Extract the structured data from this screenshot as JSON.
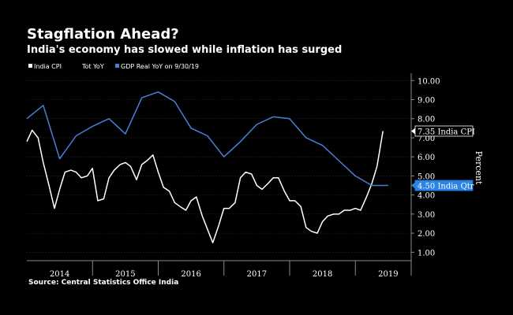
{
  "header": {
    "title": "Stagflation Ahead?",
    "subtitle": "India's economy has slowed while inflation has surged"
  },
  "source": "Source: Central Statistics Office India",
  "colors": {
    "background": "#000000",
    "cpi_line": "#ffffff",
    "gdp_line": "#4a7fd6",
    "gdp_label_bg": "#2b83e6",
    "axis": "#8a8a8a",
    "grid": "#3a3a3a"
  },
  "chart_data": {
    "type": "line",
    "title": "Stagflation Ahead?",
    "xlabel": "",
    "ylabel": "Percent",
    "ylim": [
      0.6,
      10.3
    ],
    "yticks": [
      "10.00",
      "9.00",
      "8.00",
      "7.00",
      "6.00",
      "5.00",
      "4.00",
      "3.00",
      "2.00",
      "1.00"
    ],
    "ytick_values": [
      10,
      9,
      8,
      7,
      6,
      5,
      4,
      3,
      2,
      1
    ],
    "x_start": 2014.0,
    "x_end": 2019.85,
    "year_labels": [
      "2014",
      "2015",
      "2016",
      "2017",
      "2018",
      "2019"
    ],
    "year_label_values": [
      2014.5,
      2015.5,
      2016.5,
      2017.5,
      2018.5,
      2019.5
    ],
    "legend": [
      {
        "label": "India CPI",
        "color": "#ffffff"
      },
      {
        "label": "Tot YoY",
        "color": ""
      },
      {
        "label": "GDP Real YoY on 9/30/19",
        "color": "#4a7fd6"
      }
    ],
    "series": [
      {
        "name": "India CPI",
        "color": "#ffffff",
        "x": [
          2014.0,
          2014.08,
          2014.17,
          2014.25,
          2014.33,
          2014.42,
          2014.5,
          2014.58,
          2014.67,
          2014.75,
          2014.83,
          2014.92,
          2015.0,
          2015.08,
          2015.17,
          2015.25,
          2015.33,
          2015.42,
          2015.5,
          2015.58,
          2015.67,
          2015.75,
          2015.83,
          2015.92,
          2016.0,
          2016.08,
          2016.17,
          2016.25,
          2016.33,
          2016.42,
          2016.5,
          2016.58,
          2016.67,
          2016.75,
          2016.83,
          2016.92,
          2017.0,
          2017.08,
          2017.17,
          2017.25,
          2017.33,
          2017.42,
          2017.5,
          2017.58,
          2017.67,
          2017.75,
          2017.83,
          2017.92,
          2018.0,
          2018.08,
          2018.17,
          2018.25,
          2018.33,
          2018.42,
          2018.5,
          2018.58,
          2018.67,
          2018.75,
          2018.83,
          2018.92,
          2019.0,
          2019.08,
          2019.17,
          2019.25,
          2019.33,
          2019.42,
          2019.5,
          2019.58,
          2019.67,
          2019.75,
          2019.83
        ],
        "values": [
          6.8,
          7.4,
          7.0,
          5.7,
          4.6,
          3.3,
          4.3,
          5.2,
          5.3,
          5.2,
          4.9,
          5.0,
          5.4,
          3.7,
          3.8,
          4.9,
          5.3,
          5.6,
          5.7,
          5.5,
          4.8,
          5.6,
          5.8,
          6.1,
          5.2,
          4.4,
          4.2,
          3.6,
          3.4,
          3.2,
          3.7,
          3.9,
          2.9,
          2.2,
          1.5,
          2.4,
          3.3,
          3.3,
          3.6,
          4.9,
          5.2,
          5.1,
          4.5,
          4.3,
          4.6,
          4.9,
          4.9,
          4.2,
          3.7,
          3.7,
          3.4,
          2.3,
          2.1,
          2.0,
          2.6,
          2.9,
          3.0,
          3.0,
          3.2,
          3.2,
          3.3,
          3.2,
          3.9,
          4.6,
          5.5,
          7.35,
          7.35,
          7.35,
          7.35,
          7.35,
          7.35
        ]
      },
      {
        "name": "GDP Real YoY on 9/30/19",
        "color": "#4a7fd6",
        "x": [
          2014.0,
          2014.25,
          2014.5,
          2014.75,
          2015.0,
          2015.25,
          2015.5,
          2015.75,
          2016.0,
          2016.25,
          2016.5,
          2016.75,
          2017.0,
          2017.25,
          2017.5,
          2017.75,
          2018.0,
          2018.25,
          2018.5,
          2018.75,
          2019.0,
          2019.25,
          2019.5
        ],
        "values": [
          8.0,
          8.7,
          5.9,
          7.1,
          7.6,
          8.0,
          7.2,
          9.1,
          9.4,
          8.9,
          7.5,
          7.1,
          6.0,
          6.8,
          7.7,
          8.1,
          8.0,
          7.0,
          6.6,
          5.8,
          5.0,
          4.5,
          4.5
        ]
      }
    ],
    "callouts": [
      {
        "value": 7.35,
        "value_label": "7.35",
        "text": "India CPI",
        "style": "white-box"
      },
      {
        "value": 4.5,
        "value_label": "4.50",
        "text": "India Qtr",
        "style": "blue-box"
      }
    ]
  }
}
